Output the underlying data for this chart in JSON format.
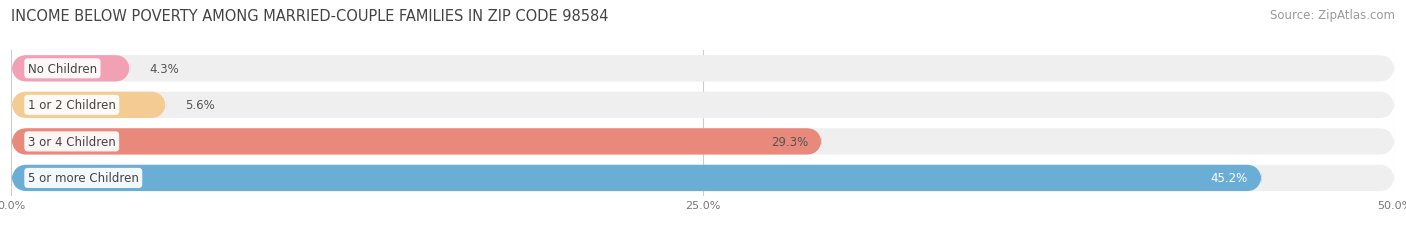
{
  "title": "INCOME BELOW POVERTY AMONG MARRIED-COUPLE FAMILIES IN ZIP CODE 98584",
  "source": "Source: ZipAtlas.com",
  "categories": [
    "No Children",
    "1 or 2 Children",
    "3 or 4 Children",
    "5 or more Children"
  ],
  "values": [
    4.3,
    5.6,
    29.3,
    45.2
  ],
  "bar_colors": [
    "#f2a0b4",
    "#f5cb94",
    "#e8897c",
    "#6aaed6"
  ],
  "label_color": "#444444",
  "value_colors": [
    "#555555",
    "#555555",
    "#555555",
    "#ffffff"
  ],
  "bar_bg_color": "#efefef",
  "xlim": [
    0,
    50
  ],
  "xticks": [
    0.0,
    25.0,
    50.0
  ],
  "xtick_labels": [
    "0.0%",
    "25.0%",
    "50.0%"
  ],
  "title_fontsize": 10.5,
  "source_fontsize": 8.5,
  "label_fontsize": 8.5,
  "value_fontsize": 8.5,
  "background_color": "#ffffff",
  "bar_height": 0.72,
  "bar_gap": 0.08
}
